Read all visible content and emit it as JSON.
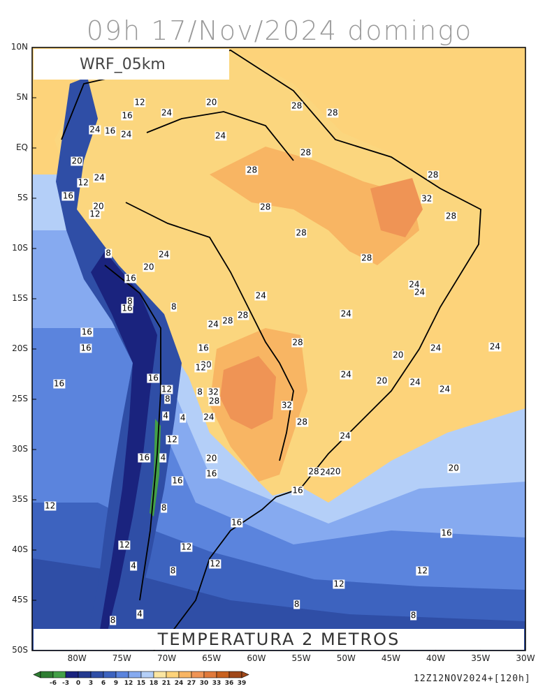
{
  "title": "09h 17/Nov/2024 domingo",
  "model_label": "WRF_05km",
  "variable_label": "TEMPERATURA 2 METROS",
  "run_label": "12Z12NOV2024+[120h]",
  "lat_labels": [
    "10N",
    "5N",
    "EQ",
    "5S",
    "10S",
    "15S",
    "20S",
    "25S",
    "30S",
    "35S",
    "40S",
    "45S",
    "50S"
  ],
  "lon_labels": [
    "80W",
    "75W",
    "70W",
    "65W",
    "60W",
    "55W",
    "50W",
    "45W",
    "40W",
    "35W",
    "30W"
  ],
  "colorbar": {
    "ticks": [
      "-6",
      "-3",
      "0",
      "3",
      "6",
      "9",
      "12",
      "15",
      "18",
      "21",
      "24",
      "27",
      "30",
      "33",
      "36",
      "39"
    ],
    "colors": [
      "#2e7d32",
      "#43a047",
      "#1a237e",
      "#243a8f",
      "#2f4ea6",
      "#3d63bf",
      "#5b84dd",
      "#86aaf0",
      "#b4cff8",
      "#fbe6a2",
      "#fdd37a",
      "#f8b563",
      "#ef9455",
      "#e07a3c",
      "#c8611f",
      "#a0481a"
    ]
  },
  "contour_labels": [
    {
      "text": "28",
      "lon": -55.5,
      "lat": 4.2
    },
    {
      "text": "28",
      "lon": -51.5,
      "lat": 3.5
    },
    {
      "text": "24",
      "lon": -70,
      "lat": 3.5
    },
    {
      "text": "20",
      "lon": -65,
      "lat": 4.5
    },
    {
      "text": "12",
      "lon": -73,
      "lat": 4.5
    },
    {
      "text": "16",
      "lon": -74.4,
      "lat": 3.2
    },
    {
      "text": "24",
      "lon": -64,
      "lat": 1.2
    },
    {
      "text": "24",
      "lon": -78,
      "lat": 1.8
    },
    {
      "text": "16",
      "lon": -76.3,
      "lat": 1.7
    },
    {
      "text": "24",
      "lon": -74.5,
      "lat": 1.3
    },
    {
      "text": "28",
      "lon": -54.5,
      "lat": -0.5
    },
    {
      "text": "20",
      "lon": -80,
      "lat": -1.3
    },
    {
      "text": "28",
      "lon": -60.5,
      "lat": -2.2
    },
    {
      "text": "28",
      "lon": -40.3,
      "lat": -2.7
    },
    {
      "text": "12",
      "lon": -79.3,
      "lat": -3.5
    },
    {
      "text": "24",
      "lon": -77.5,
      "lat": -3
    },
    {
      "text": "16",
      "lon": -81,
      "lat": -4.8
    },
    {
      "text": "20",
      "lon": -77.6,
      "lat": -5.8
    },
    {
      "text": "12",
      "lon": -78,
      "lat": -6.6
    },
    {
      "text": "32",
      "lon": -41,
      "lat": -5.1
    },
    {
      "text": "28",
      "lon": -59,
      "lat": -5.9
    },
    {
      "text": "28",
      "lon": -38.3,
      "lat": -6.8
    },
    {
      "text": "28",
      "lon": -55,
      "lat": -8.5
    },
    {
      "text": "8",
      "lon": -76.5,
      "lat": -10.5
    },
    {
      "text": "24",
      "lon": -70.3,
      "lat": -10.6
    },
    {
      "text": "28",
      "lon": -47.7,
      "lat": -11
    },
    {
      "text": "20",
      "lon": -72,
      "lat": -11.9
    },
    {
      "text": "16",
      "lon": -74,
      "lat": -13
    },
    {
      "text": "24",
      "lon": -42.4,
      "lat": -13.6
    },
    {
      "text": "24",
      "lon": -41.8,
      "lat": -14.4
    },
    {
      "text": "24",
      "lon": -59.5,
      "lat": -14.7
    },
    {
      "text": "8",
      "lon": -74.1,
      "lat": -15.3
    },
    {
      "text": "16",
      "lon": -74.4,
      "lat": -16
    },
    {
      "text": "8",
      "lon": -69.2,
      "lat": -15.8
    },
    {
      "text": "28",
      "lon": -61.5,
      "lat": -16.7
    },
    {
      "text": "24",
      "lon": -50,
      "lat": -16.5
    },
    {
      "text": "28",
      "lon": -63.2,
      "lat": -17.2
    },
    {
      "text": "24",
      "lon": -64.8,
      "lat": -17.6
    },
    {
      "text": "16",
      "lon": -78.9,
      "lat": -18.3
    },
    {
      "text": "28",
      "lon": -55.4,
      "lat": -19.4
    },
    {
      "text": "16",
      "lon": -79,
      "lat": -19.9
    },
    {
      "text": "16",
      "lon": -65.9,
      "lat": -19.9
    },
    {
      "text": "24",
      "lon": -40,
      "lat": -19.9
    },
    {
      "text": "24",
      "lon": -33.4,
      "lat": -19.8
    },
    {
      "text": "20",
      "lon": -44.2,
      "lat": -20.6
    },
    {
      "text": "20",
      "lon": -65.6,
      "lat": -21.6
    },
    {
      "text": "12",
      "lon": -66.2,
      "lat": -21.9
    },
    {
      "text": "16",
      "lon": -71.5,
      "lat": -22.9
    },
    {
      "text": "24",
      "lon": -50,
      "lat": -22.6
    },
    {
      "text": "20",
      "lon": -46,
      "lat": -23.2
    },
    {
      "text": "24",
      "lon": -42.3,
      "lat": -23.3
    },
    {
      "text": "16",
      "lon": -82,
      "lat": -23.5
    },
    {
      "text": "12",
      "lon": -70,
      "lat": -24
    },
    {
      "text": "24",
      "lon": -39,
      "lat": -24
    },
    {
      "text": "8",
      "lon": -66.3,
      "lat": -24.3
    },
    {
      "text": "32",
      "lon": -64.8,
      "lat": -24.3
    },
    {
      "text": "8",
      "lon": -69.9,
      "lat": -25
    },
    {
      "text": "28",
      "lon": -64.7,
      "lat": -25.2
    },
    {
      "text": "32",
      "lon": -56.6,
      "lat": -25.6
    },
    {
      "text": "4",
      "lon": -70.1,
      "lat": -26.7
    },
    {
      "text": "4",
      "lon": -68.2,
      "lat": -26.9
    },
    {
      "text": "24",
      "lon": -65.3,
      "lat": -26.8
    },
    {
      "text": "28",
      "lon": -54.9,
      "lat": -27.3
    },
    {
      "text": "24",
      "lon": -50.1,
      "lat": -28.7
    },
    {
      "text": "12",
      "lon": -69.4,
      "lat": -29
    },
    {
      "text": "16",
      "lon": -72.5,
      "lat": -30.8
    },
    {
      "text": "4",
      "lon": -70.4,
      "lat": -30.8
    },
    {
      "text": "20",
      "lon": -65,
      "lat": -30.9
    },
    {
      "text": "20",
      "lon": -38,
      "lat": -31.9
    },
    {
      "text": "28",
      "lon": -53.6,
      "lat": -32.2
    },
    {
      "text": "24",
      "lon": -52.3,
      "lat": -32.3
    },
    {
      "text": "20",
      "lon": -51.2,
      "lat": -32.2
    },
    {
      "text": "16",
      "lon": -65,
      "lat": -32.4
    },
    {
      "text": "16",
      "lon": -68.8,
      "lat": -33.1
    },
    {
      "text": "16",
      "lon": -55.4,
      "lat": -34.1
    },
    {
      "text": "12",
      "lon": -83,
      "lat": -35.6
    },
    {
      "text": "8",
      "lon": -70.3,
      "lat": -35.8
    },
    {
      "text": "16",
      "lon": -62.2,
      "lat": -37.3
    },
    {
      "text": "16",
      "lon": -38.8,
      "lat": -38.3
    },
    {
      "text": "12",
      "lon": -74.7,
      "lat": -39.5
    },
    {
      "text": "12",
      "lon": -67.8,
      "lat": -39.7
    },
    {
      "text": "12",
      "lon": -64.6,
      "lat": -41.4
    },
    {
      "text": "4",
      "lon": -73.7,
      "lat": -41.6
    },
    {
      "text": "8",
      "lon": -69.3,
      "lat": -42.1
    },
    {
      "text": "12",
      "lon": -41.5,
      "lat": -42.1
    },
    {
      "text": "12",
      "lon": -50.8,
      "lat": -43.4
    },
    {
      "text": "8",
      "lon": -55.5,
      "lat": -45.4
    },
    {
      "text": "4",
      "lon": -73,
      "lat": -46.4
    },
    {
      "text": "8",
      "lon": -76,
      "lat": -47
    },
    {
      "text": "8",
      "lon": -42.5,
      "lat": -46.5
    }
  ]
}
